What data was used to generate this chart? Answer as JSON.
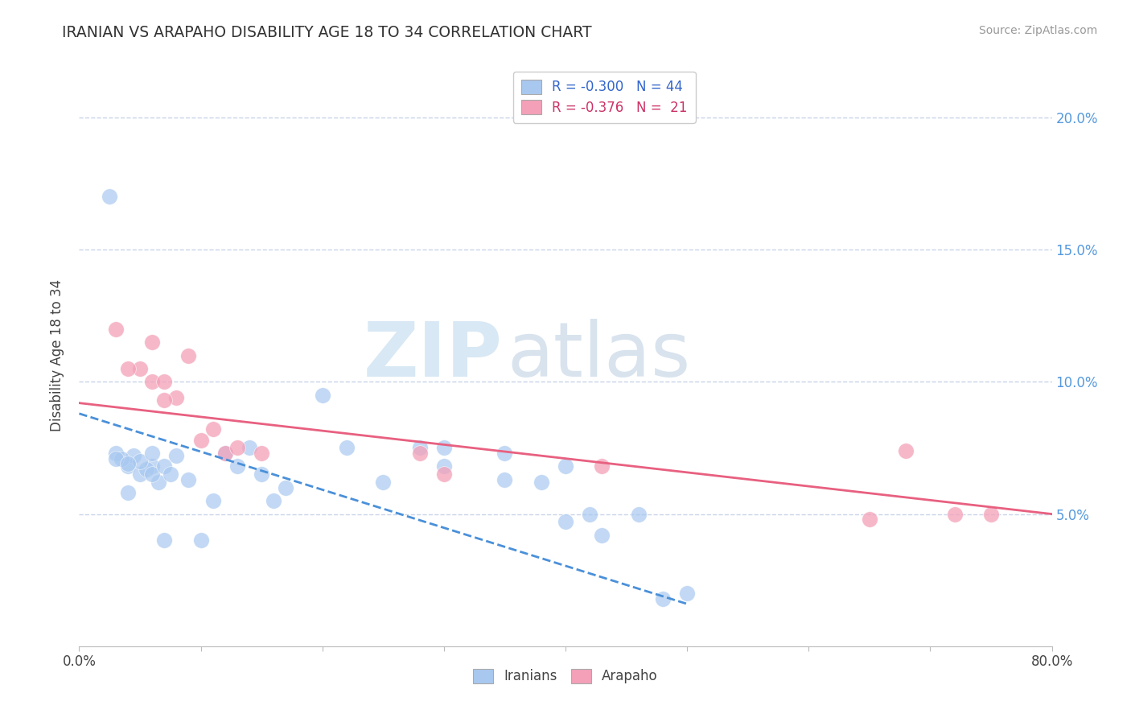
{
  "title": "IRANIAN VS ARAPAHO DISABILITY AGE 18 TO 34 CORRELATION CHART",
  "source_text": "Source: ZipAtlas.com",
  "ylabel": "Disability Age 18 to 34",
  "watermark_zip": "ZIP",
  "watermark_atlas": "atlas",
  "legend_label_iranian": "R = -0.300   N = 44",
  "legend_label_arapaho": "R = -0.376   N =  21",
  "legend_bottom_iranian": "Iranians",
  "legend_bottom_arapaho": "Arapaho",
  "iranian_color": "#a8c8f0",
  "arapaho_color": "#f4a0b8",
  "trend_iranian_color": "#4a90d9",
  "trend_arapaho_color": "#e86080",
  "xlim": [
    0.0,
    0.8
  ],
  "ylim": [
    0.0,
    0.22
  ],
  "xticks": [
    0.0,
    0.1,
    0.2,
    0.3,
    0.4,
    0.5,
    0.6,
    0.7,
    0.8
  ],
  "xticklabels_show": {
    "0.0": "0.0%",
    "0.8": "80.0%"
  },
  "yticks": [
    0.05,
    0.1,
    0.15,
    0.2
  ],
  "yticklabels_right": [
    "5.0%",
    "10.0%",
    "15.0%",
    "20.0%"
  ],
  "grid_color": "#c8d4e8",
  "background_color": "#ffffff",
  "iranian_scatter_x": [
    0.025,
    0.04,
    0.05,
    0.03,
    0.06,
    0.055,
    0.065,
    0.045,
    0.04,
    0.06,
    0.035,
    0.05,
    0.06,
    0.07,
    0.075,
    0.08,
    0.09,
    0.1,
    0.11,
    0.12,
    0.13,
    0.14,
    0.15,
    0.16,
    0.17,
    0.2,
    0.22,
    0.25,
    0.28,
    0.3,
    0.35,
    0.38,
    0.4,
    0.42,
    0.3,
    0.35,
    0.4,
    0.46,
    0.48,
    0.5,
    0.03,
    0.04,
    0.07,
    0.43
  ],
  "iranian_scatter_y": [
    0.17,
    0.068,
    0.065,
    0.073,
    0.068,
    0.067,
    0.062,
    0.072,
    0.058,
    0.065,
    0.071,
    0.07,
    0.073,
    0.068,
    0.065,
    0.072,
    0.063,
    0.04,
    0.055,
    0.073,
    0.068,
    0.075,
    0.065,
    0.055,
    0.06,
    0.095,
    0.075,
    0.062,
    0.075,
    0.068,
    0.073,
    0.062,
    0.047,
    0.05,
    0.075,
    0.063,
    0.068,
    0.05,
    0.018,
    0.02,
    0.071,
    0.069,
    0.04,
    0.042
  ],
  "arapaho_scatter_x": [
    0.03,
    0.05,
    0.06,
    0.06,
    0.07,
    0.08,
    0.09,
    0.1,
    0.12,
    0.28,
    0.3,
    0.68,
    0.72,
    0.75,
    0.04,
    0.07,
    0.11,
    0.13,
    0.15,
    0.43,
    0.65
  ],
  "arapaho_scatter_y": [
    0.12,
    0.105,
    0.115,
    0.1,
    0.1,
    0.094,
    0.11,
    0.078,
    0.073,
    0.073,
    0.065,
    0.074,
    0.05,
    0.05,
    0.105,
    0.093,
    0.082,
    0.075,
    0.073,
    0.068,
    0.048
  ],
  "iranian_trend_x": [
    0.0,
    0.5
  ],
  "iranian_trend_y": [
    0.088,
    0.016
  ],
  "arapaho_trend_x": [
    0.0,
    0.8
  ],
  "arapaho_trend_y": [
    0.092,
    0.05
  ]
}
